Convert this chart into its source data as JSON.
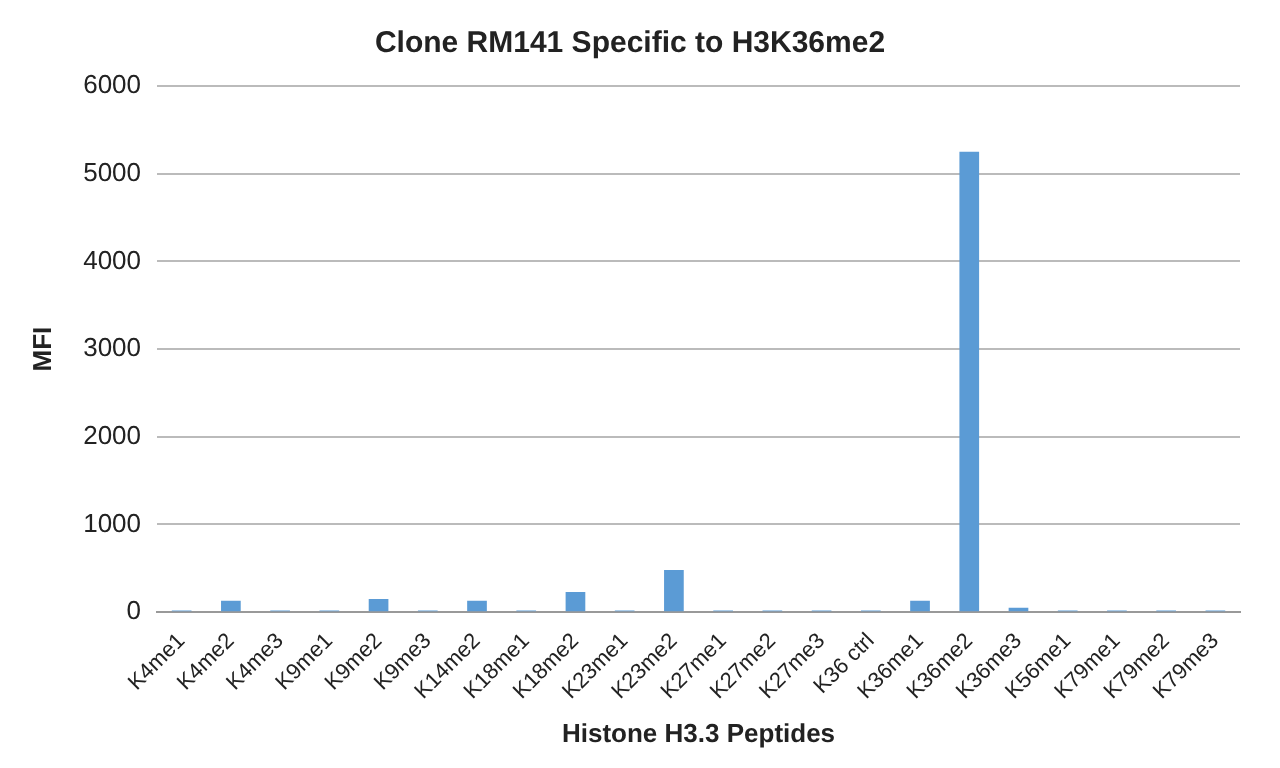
{
  "chart_data": {
    "type": "bar",
    "title": "Clone RM141 Specific to H3K36me2",
    "xlabel": "Histone H3.3 Peptides",
    "ylabel": "MFI",
    "categories": [
      "K4me1",
      "K4me2",
      "K4me3",
      "K9me1",
      "K9me2",
      "K9me3",
      "K14me2",
      "K18me1",
      "K18me2",
      "K23me1",
      "K23me2",
      "K27me1",
      "K27me2",
      "K27me3",
      "K36 ctrl",
      "K36me1",
      "K36me2",
      "K36me3",
      "K56me1",
      "K79me1",
      "K79me2",
      "K79me3"
    ],
    "values": [
      20,
      130,
      20,
      20,
      150,
      20,
      130,
      20,
      230,
      20,
      480,
      20,
      20,
      20,
      20,
      130,
      5250,
      50,
      20,
      20,
      20,
      20
    ],
    "color": "#5b9bd5",
    "ylim": [
      0,
      6000
    ],
    "yticks": [
      0,
      1000,
      2000,
      3000,
      4000,
      5000,
      6000
    ],
    "grid": "y",
    "legend": false
  }
}
